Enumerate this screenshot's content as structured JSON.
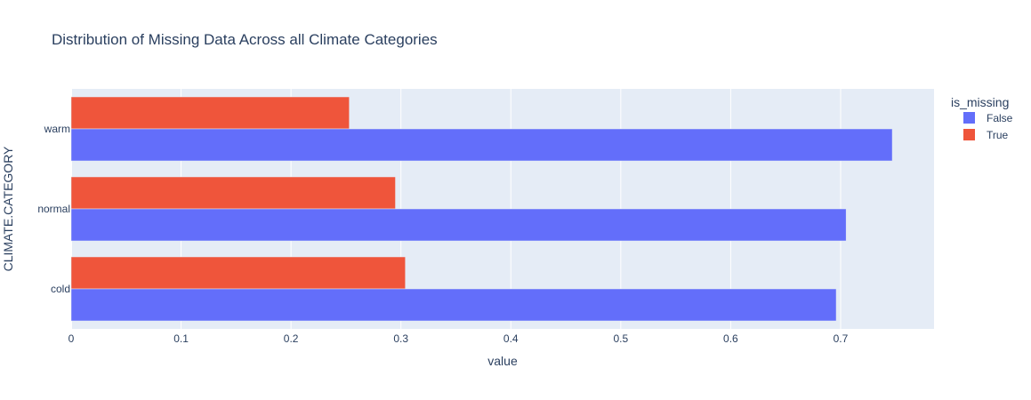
{
  "chart_data": {
    "type": "bar",
    "orientation": "horizontal",
    "barmode": "group",
    "title": "Distribution of Missing Data Across all Climate Categories",
    "xlabel": "value",
    "ylabel": "CLIMATE.CATEGORY",
    "categories": [
      "cold",
      "normal",
      "warm"
    ],
    "xlim": [
      0,
      0.785
    ],
    "xticks": [
      0,
      0.1,
      0.2,
      0.3,
      0.4,
      0.5,
      0.6,
      0.7
    ],
    "xtick_labels": [
      "0",
      "0.1",
      "0.2",
      "0.3",
      "0.4",
      "0.5",
      "0.6",
      "0.7"
    ],
    "grid": true,
    "legend": {
      "title": "is_missing",
      "position": "right"
    },
    "series": [
      {
        "name": "False",
        "color": "#636efa",
        "values": [
          0.696,
          0.705,
          0.747
        ]
      },
      {
        "name": "True",
        "color": "#ef553b",
        "values": [
          0.304,
          0.295,
          0.253
        ]
      }
    ]
  }
}
